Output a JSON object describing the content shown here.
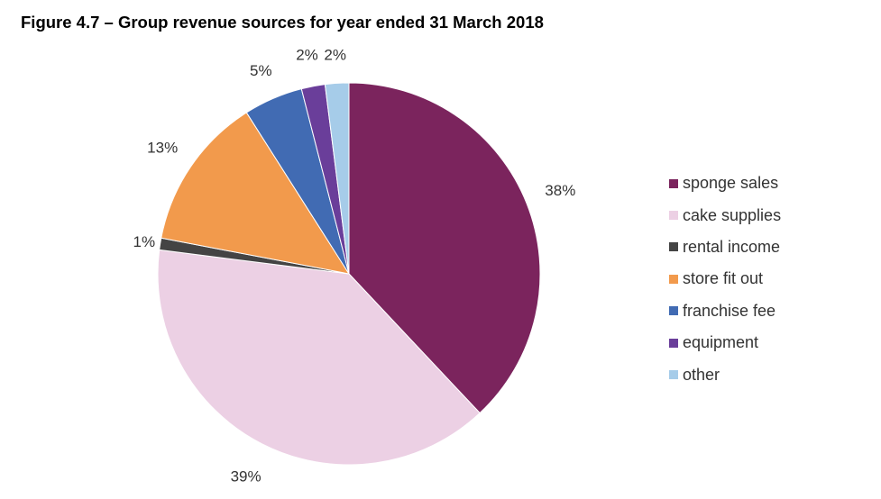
{
  "title": "Figure 4.7 – Group revenue sources for year ended 31 March 2018",
  "chart_data": {
    "type": "pie",
    "slices": [
      {
        "label": "sponge sales",
        "value": 38,
        "display": "38%",
        "color": "#7b245d"
      },
      {
        "label": "cake supplies",
        "value": 39,
        "display": "39%",
        "color": "#ecd0e4"
      },
      {
        "label": "rental income",
        "value": 1,
        "display": "1%",
        "color": "#444444"
      },
      {
        "label": "store fit out",
        "value": 13,
        "display": "13%",
        "color": "#f29a4c"
      },
      {
        "label": "franchise fee",
        "value": 5,
        "display": "5%",
        "color": "#416bb3"
      },
      {
        "label": "equipment",
        "value": 2,
        "display": "2%",
        "color": "#6a3e9a"
      },
      {
        "label": "other",
        "value": 2,
        "display": "2%",
        "color": "#a6cce9"
      }
    ],
    "direction": "clockwise",
    "legend_position": "right"
  }
}
